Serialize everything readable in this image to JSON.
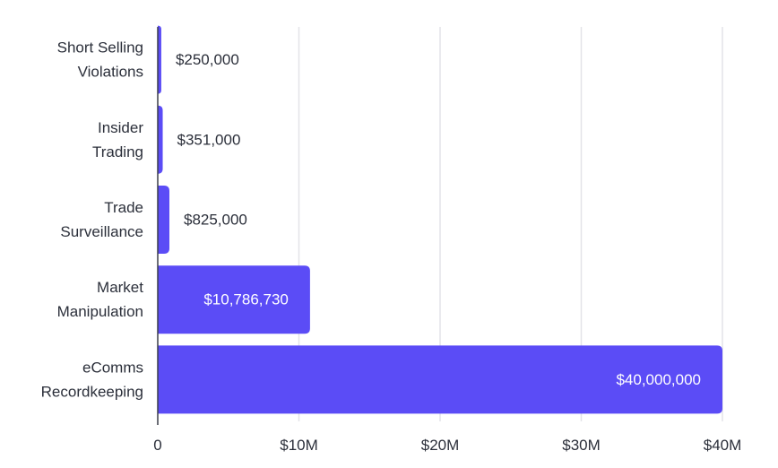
{
  "colors": {
    "bar": "#5b4cf6",
    "grid": "#e4e4e8",
    "axis": "#3b3f48",
    "label_outside": "#2b2f3a",
    "label_inside": "#ffffff"
  },
  "chart_data": {
    "type": "bar",
    "orientation": "horizontal",
    "title": "",
    "xlabel": "",
    "ylabel": "",
    "categories": [
      [
        "Short Selling",
        "Violations"
      ],
      [
        "Insider",
        "Trading"
      ],
      [
        "Trade",
        "Surveillance"
      ],
      [
        "Market",
        "Manipulation"
      ],
      [
        "eComms",
        "Recordkeeping"
      ]
    ],
    "values": [
      250000,
      351000,
      825000,
      10786730,
      40000000
    ],
    "data_labels": [
      "$250,000",
      "$351,000",
      "$825,000",
      "$10,786,730",
      "$40,000,000"
    ],
    "xlim": [
      0,
      40000000
    ],
    "xticks": [
      0,
      10000000,
      20000000,
      30000000,
      40000000
    ],
    "xtick_labels": [
      "0",
      "$10M",
      "$20M",
      "$30M",
      "$40M"
    ],
    "grid": "vertical",
    "legend": "none"
  }
}
